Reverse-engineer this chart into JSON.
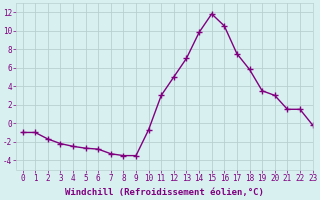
{
  "x": [
    0,
    1,
    2,
    3,
    4,
    5,
    6,
    7,
    8,
    9,
    10,
    11,
    12,
    13,
    14,
    15,
    16,
    17,
    18,
    19,
    20,
    21,
    22,
    23
  ],
  "y": [
    -1,
    -1,
    -1.7,
    -2.2,
    -2.5,
    -2.7,
    -2.8,
    -3.3,
    -3.5,
    -3.5,
    -0.7,
    3.0,
    5.0,
    7.0,
    9.8,
    11.8,
    10.5,
    7.5,
    5.8,
    3.5,
    3.0,
    1.5,
    1.5,
    -0.2
  ],
  "line_color": "#800080",
  "marker": "+",
  "markersize": 4,
  "linewidth": 1.0,
  "bg_color": "#d8f0f0",
  "grid_color": "#b8d0d0",
  "axis_color": "#800080",
  "xlabel": "Windchill (Refroidissement éolien,°C)",
  "ylim": [
    -5,
    13
  ],
  "xlim": [
    -0.5,
    23
  ],
  "yticks": [
    -4,
    -2,
    0,
    2,
    4,
    6,
    8,
    10,
    12
  ],
  "xticks": [
    0,
    1,
    2,
    3,
    4,
    5,
    6,
    7,
    8,
    9,
    10,
    11,
    12,
    13,
    14,
    15,
    16,
    17,
    18,
    19,
    20,
    21,
    22,
    23
  ],
  "tick_fontsize": 5.5,
  "xlabel_fontsize": 6.5
}
